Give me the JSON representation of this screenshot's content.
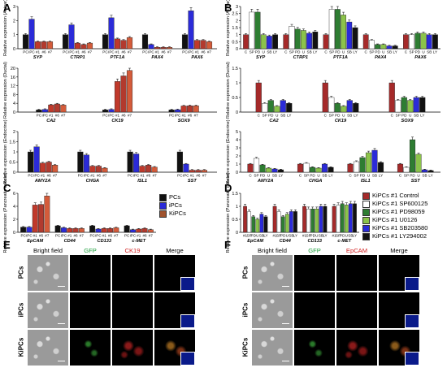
{
  "panels": {
    "A": "A",
    "B": "B",
    "C": "C",
    "D": "D",
    "E": "E",
    "F": "F"
  },
  "chart_data": [
    {
      "id": "A1",
      "type": "bar",
      "ylabel": "Relative expression (Acinar)",
      "ylim": [
        0,
        3
      ],
      "yticks": [
        "0",
        "1",
        "2",
        "3"
      ],
      "groups": [
        "SYP",
        "CTRP1",
        "PTF1A",
        "PAX4",
        "PAX6"
      ],
      "bar_labels": [
        "PC",
        "iPC",
        "#1",
        "#6",
        "#7"
      ],
      "colors": [
        "#111111",
        "#2b2bd8",
        "#c0392b",
        "#b23a2e",
        "#d45b3a"
      ],
      "values": [
        [
          1,
          2.1,
          0.5,
          0.5,
          0.5
        ],
        [
          1,
          1.7,
          0.4,
          0.3,
          0.4
        ],
        [
          1,
          2.2,
          0.7,
          0.6,
          0.8
        ],
        [
          1,
          0.3,
          0.1,
          0.1,
          0.1
        ],
        [
          1,
          2.7,
          0.6,
          0.6,
          0.5
        ]
      ]
    },
    {
      "id": "A2",
      "type": "bar",
      "ylabel": "Relative expression (Ductal)",
      "ylim": [
        0,
        20
      ],
      "yticks": [
        "0",
        "4",
        "8",
        "12",
        "16",
        "20"
      ],
      "groups": [
        "CA2",
        "CK19",
        "SOX9"
      ],
      "bar_labels": [
        "PC",
        "iPC",
        "#1",
        "#6",
        "#7"
      ],
      "colors": [
        "#111111",
        "#2b2bd8",
        "#c0392b",
        "#b23a2e",
        "#d45b3a"
      ],
      "values": [
        [
          1,
          1.2,
          3.3,
          3.7,
          3.2
        ],
        [
          1,
          1.2,
          14,
          16.5,
          19
        ],
        [
          1,
          1.1,
          2.8,
          2.9,
          2.9
        ]
      ]
    },
    {
      "id": "A3",
      "type": "bar",
      "ylabel": "Relative expression (Endocrine)",
      "ylim": [
        0,
        2
      ],
      "yticks": [
        "0",
        "0.5",
        "1",
        "1.5",
        "2"
      ],
      "groups": [
        "AMY2A",
        "CHGA",
        "ISL1",
        "SST"
      ],
      "bar_labels": [
        "PC",
        "iPC",
        "#1",
        "#6",
        "#7"
      ],
      "colors": [
        "#111111",
        "#2b2bd8",
        "#c0392b",
        "#b23a2e",
        "#d45b3a"
      ],
      "values": [
        [
          1,
          1.25,
          0.45,
          0.5,
          0.35
        ],
        [
          1,
          0.85,
          0.3,
          0.3,
          0.2
        ],
        [
          1,
          0.9,
          0.3,
          0.35,
          0.25
        ],
        [
          1,
          0.4,
          0.1,
          0.1,
          0.1
        ]
      ]
    },
    {
      "id": "B1",
      "type": "bar",
      "ylabel": "Relative expression (Acinar)",
      "ylim": [
        0,
        3
      ],
      "yticks": [
        "0",
        "0.5",
        "1",
        "1.5",
        "2",
        "2.5",
        "3"
      ],
      "groups": [
        "SYP",
        "CTRP1",
        "PTF1A",
        "PAX4",
        "PAX6"
      ],
      "bar_labels": [
        "C",
        "SP",
        "PD",
        "U",
        "SB",
        "LY"
      ],
      "colors": [
        "#a52a2a",
        "#ffffff",
        "#2e7d32",
        "#8bc34a",
        "#2b2bd8",
        "#111111"
      ],
      "values": [
        [
          1,
          2.6,
          2.6,
          1,
          0.9,
          1
        ],
        [
          1,
          1.6,
          1.4,
          1.3,
          1.1,
          1.2
        ],
        [
          1,
          2.8,
          2.8,
          2.4,
          1.9,
          1.5
        ],
        [
          1,
          0.6,
          0.3,
          0.3,
          0.2,
          0.2
        ],
        [
          1,
          1,
          1.1,
          1.1,
          1,
          1
        ]
      ]
    },
    {
      "id": "B2",
      "type": "bar",
      "ylabel": "Relative expression (Ductal)",
      "ylim": [
        0,
        1.5
      ],
      "yticks": [
        "0",
        "0.5",
        "1",
        "1.5"
      ],
      "groups": [
        "CA2",
        "CK19",
        "SOX9"
      ],
      "bar_labels": [
        "C",
        "SP",
        "PD",
        "U",
        "SB",
        "LY"
      ],
      "colors": [
        "#a52a2a",
        "#ffffff",
        "#2e7d32",
        "#8bc34a",
        "#2b2bd8",
        "#111111"
      ],
      "values": [
        [
          1,
          0.3,
          0.4,
          0.2,
          0.4,
          0.3
        ],
        [
          1,
          0.5,
          0.3,
          0.2,
          0.4,
          0.3
        ],
        [
          1,
          0.4,
          0.5,
          0.4,
          0.5,
          0.5
        ]
      ]
    },
    {
      "id": "B3",
      "type": "bar",
      "ylabel": "Relative expression (Endocrine)",
      "ylim": [
        0,
        5
      ],
      "yticks": [
        "0",
        "1",
        "2",
        "3",
        "4",
        "5"
      ],
      "groups": [
        "AMY2A",
        "CHGA",
        "ISL1",
        "SST"
      ],
      "bar_labels": [
        "C",
        "SP",
        "PD",
        "U",
        "SB",
        "LY"
      ],
      "colors": [
        "#a52a2a",
        "#ffffff",
        "#2e7d32",
        "#8bc34a",
        "#2b2bd8",
        "#111111"
      ],
      "values": [
        [
          1,
          1.7,
          0.9,
          0.5,
          0.4,
          0.3
        ],
        [
          1,
          1.1,
          0.6,
          0.5,
          1,
          0.6
        ],
        [
          1,
          1.3,
          1.8,
          2.4,
          2.7,
          1.2
        ],
        [
          1,
          0.6,
          4,
          2.2,
          0.3,
          0.2
        ]
      ]
    },
    {
      "id": "C",
      "type": "bar",
      "ylabel": "Relative expression (Pancreatic cancer)",
      "ylim": [
        0,
        6
      ],
      "yticks": [
        "0",
        "2",
        "4",
        "6"
      ],
      "groups": [
        "EpCAM",
        "CD44",
        "CD133",
        "c-MET"
      ],
      "bar_labels": [
        "PC",
        "iPC",
        "#1",
        "#6",
        "#7"
      ],
      "colors": [
        "#111111",
        "#2b2bd8",
        "#c0392b",
        "#b23a2e",
        "#d45b3a"
      ],
      "values": [
        [
          0.8,
          0.8,
          4.2,
          4.3,
          5.6
        ],
        [
          1,
          0.7,
          0.6,
          0.6,
          0.6
        ],
        [
          1,
          0.5,
          0.6,
          0.6,
          0.7
        ],
        [
          1,
          0.4,
          0.5,
          0.6,
          0.4
        ]
      ],
      "legend": [
        "PCs",
        "iPCs",
        "KiPCs"
      ],
      "legend_colors": [
        "#111111",
        "#2b2bd8",
        "#a0522d"
      ]
    },
    {
      "id": "D",
      "type": "bar",
      "ylabel": "Relative expression (Pancreatic cancer)",
      "ylim": [
        0,
        1.5
      ],
      "yticks": [
        "0",
        "0.5",
        "1",
        "1.5"
      ],
      "groups": [
        "EpCAM",
        "CD44",
        "CD133",
        "c-MET"
      ],
      "bar_labels": [
        "#1",
        "SP",
        "PD",
        "U",
        "SB",
        "LY"
      ],
      "colors": [
        "#a52a2a",
        "#ffffff",
        "#2e7d32",
        "#8bc34a",
        "#2b2bd8",
        "#111111"
      ],
      "values": [
        [
          1,
          0.8,
          0.6,
          0.5,
          0.7,
          0.6
        ],
        [
          1,
          0.8,
          0.6,
          0.7,
          0.8,
          0.8
        ],
        [
          1,
          0.9,
          0.9,
          0.9,
          1,
          1
        ],
        [
          1,
          1.05,
          1.1,
          1.05,
          1.1,
          1.1
        ]
      ],
      "legend": [
        "KiPCs #1 Control",
        "KiPCs #1 SP600125",
        "KiPCs #1 PD98059",
        "KiPCs #1 U0126",
        "KiPCs #1 SB203580",
        "KiPCs #1 LY294002"
      ],
      "legend_colors": [
        "#a52a2a",
        "#ffffff",
        "#2e7d32",
        "#8bc34a",
        "#2b2bd8",
        "#111111"
      ]
    }
  ],
  "micro_E": {
    "headers": [
      "Bright field",
      "GFP",
      "CK19",
      "Merge"
    ],
    "header_colors": [
      "#000000",
      "#1a9e3a",
      "#d32020",
      "#000000"
    ],
    "rows": [
      "PCs",
      "iPCs",
      "KiPCs"
    ]
  },
  "micro_F": {
    "headers": [
      "Bright field",
      "GFP",
      "EpCAM",
      "Merge"
    ],
    "header_colors": [
      "#000000",
      "#1a9e3a",
      "#d32020",
      "#000000"
    ],
    "rows": [
      "PCs",
      "iPCs",
      "KiPCs"
    ]
  }
}
